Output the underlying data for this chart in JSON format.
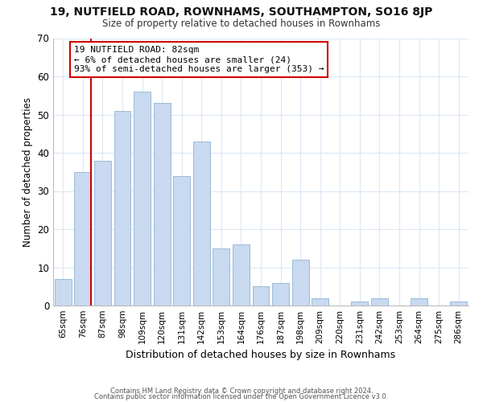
{
  "title_line1": "19, NUTFIELD ROAD, ROWNHAMS, SOUTHAMPTON, SO16 8JP",
  "title_line2": "Size of property relative to detached houses in Rownhams",
  "xlabel": "Distribution of detached houses by size in Rownhams",
  "ylabel": "Number of detached properties",
  "bar_labels": [
    "65sqm",
    "76sqm",
    "87sqm",
    "98sqm",
    "109sqm",
    "120sqm",
    "131sqm",
    "142sqm",
    "153sqm",
    "164sqm",
    "176sqm",
    "187sqm",
    "198sqm",
    "209sqm",
    "220sqm",
    "231sqm",
    "242sqm",
    "253sqm",
    "264sqm",
    "275sqm",
    "286sqm"
  ],
  "bar_values": [
    7,
    35,
    38,
    51,
    56,
    53,
    34,
    43,
    15,
    16,
    5,
    6,
    12,
    2,
    0,
    1,
    2,
    0,
    2,
    0,
    1
  ],
  "bar_color": "#c8d9f0",
  "bar_edge_color": "#9bbcd8",
  "vline_color": "#cc0000",
  "annotation_text": "19 NUTFIELD ROAD: 82sqm\n← 6% of detached houses are smaller (24)\n93% of semi-detached houses are larger (353) →",
  "annotation_box_color": "#ffffff",
  "annotation_box_edge": "#cc0000",
  "ylim": [
    0,
    70
  ],
  "yticks": [
    0,
    10,
    20,
    30,
    40,
    50,
    60,
    70
  ],
  "footer_line1": "Contains HM Land Registry data © Crown copyright and database right 2024.",
  "footer_line2": "Contains public sector information licensed under the Open Government Licence v3.0.",
  "background_color": "#ffffff",
  "grid_color": "#dce8f5"
}
